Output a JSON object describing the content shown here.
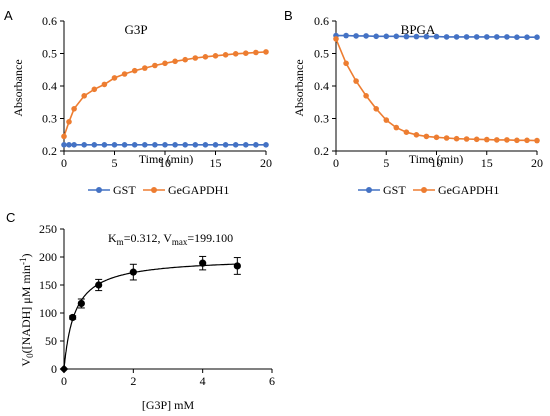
{
  "chart_data": [
    {
      "panel_label": "A",
      "type": "line",
      "title": "G3P",
      "xlabel": "Time (min)",
      "ylabel": "Absorbance",
      "xlim": [
        0,
        20
      ],
      "ylim": [
        0.2,
        0.6
      ],
      "xticks": [
        0,
        5,
        10,
        15,
        20
      ],
      "yticks": [
        0.2,
        0.3,
        0.4,
        0.5,
        0.6
      ],
      "grid": false,
      "legend_position": "bottom",
      "x": [
        0,
        0.5,
        1,
        2,
        3,
        4,
        5,
        6,
        7,
        8,
        9,
        10,
        11,
        12,
        13,
        14,
        15,
        16,
        17,
        18,
        19,
        20
      ],
      "series": [
        {
          "name": "GST",
          "color": "#4472C4",
          "values": [
            0.219,
            0.219,
            0.219,
            0.219,
            0.219,
            0.219,
            0.219,
            0.219,
            0.219,
            0.219,
            0.219,
            0.219,
            0.219,
            0.219,
            0.219,
            0.219,
            0.219,
            0.219,
            0.219,
            0.219,
            0.219,
            0.219
          ]
        },
        {
          "name": "GeGAPDH1",
          "color": "#ED7D31",
          "values": [
            0.245,
            0.29,
            0.33,
            0.37,
            0.39,
            0.405,
            0.425,
            0.437,
            0.447,
            0.455,
            0.463,
            0.47,
            0.476,
            0.481,
            0.486,
            0.49,
            0.493,
            0.496,
            0.499,
            0.501,
            0.503,
            0.505
          ]
        }
      ]
    },
    {
      "panel_label": "B",
      "type": "line",
      "title": "BPGA",
      "xlabel": "Time (min)",
      "ylabel": "Absorbance",
      "xlim": [
        0,
        20
      ],
      "ylim": [
        0.2,
        0.6
      ],
      "xticks": [
        0,
        5,
        10,
        15,
        20
      ],
      "yticks": [
        0.2,
        0.3,
        0.4,
        0.5,
        0.6
      ],
      "grid": false,
      "legend_position": "bottom",
      "x": [
        0,
        1,
        2,
        3,
        4,
        5,
        6,
        7,
        8,
        9,
        10,
        11,
        12,
        13,
        14,
        15,
        16,
        17,
        18,
        19,
        20
      ],
      "series": [
        {
          "name": "GST",
          "color": "#4472C4",
          "values": [
            0.555,
            0.555,
            0.554,
            0.554,
            0.553,
            0.553,
            0.553,
            0.552,
            0.552,
            0.552,
            0.552,
            0.551,
            0.551,
            0.551,
            0.551,
            0.551,
            0.551,
            0.551,
            0.55,
            0.55,
            0.55
          ]
        },
        {
          "name": "GeGAPDH1",
          "color": "#ED7D31",
          "values": [
            0.545,
            0.47,
            0.415,
            0.37,
            0.33,
            0.295,
            0.272,
            0.258,
            0.25,
            0.245,
            0.242,
            0.24,
            0.238,
            0.237,
            0.236,
            0.235,
            0.234,
            0.234,
            0.233,
            0.233,
            0.232
          ]
        }
      ]
    },
    {
      "panel_label": "C",
      "type": "scatter",
      "annotation": {
        "km_label": "K",
        "km_sub": "m",
        "km_value": "=0.312, V",
        "vmax_sub": "max",
        "vmax_value": "=199.100"
      },
      "xlabel": "[G3P] mM",
      "ylabel_main": "V",
      "ylabel_sub": "0",
      "ylabel_rest": "([NADH] μM min",
      "ylabel_sup": "-1",
      "ylabel_end": ")",
      "xlim": [
        0,
        6
      ],
      "ylim": [
        0,
        250
      ],
      "xticks": [
        0,
        2,
        4,
        6
      ],
      "yticks": [
        0,
        50,
        100,
        150,
        200,
        250
      ],
      "grid": false,
      "fit": {
        "model": "michaelis-menten",
        "km": 0.312,
        "vmax": 199.1
      },
      "points": [
        {
          "x": 0,
          "y": 0,
          "err": 0
        },
        {
          "x": 0.25,
          "y": 92,
          "err": 3
        },
        {
          "x": 0.5,
          "y": 117,
          "err": 8
        },
        {
          "x": 1,
          "y": 150,
          "err": 10
        },
        {
          "x": 2,
          "y": 173,
          "err": 14
        },
        {
          "x": 4,
          "y": 189,
          "err": 12
        },
        {
          "x": 5,
          "y": 184,
          "err": 15
        }
      ],
      "marker_color": "#000000"
    }
  ]
}
